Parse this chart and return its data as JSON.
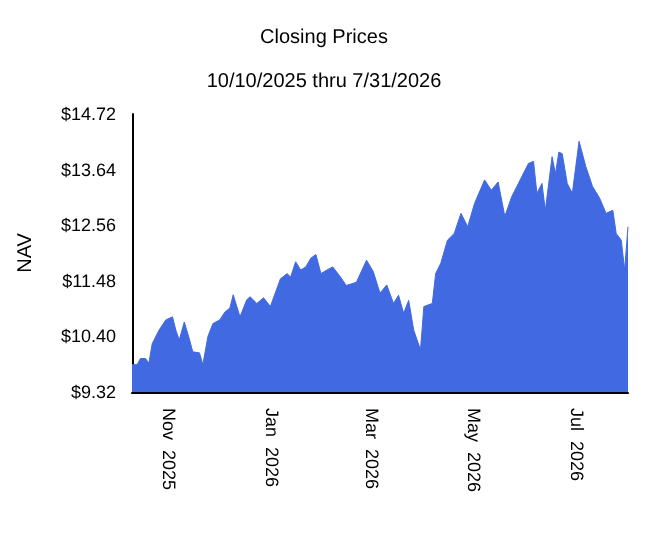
{
  "chart_data": {
    "type": "area",
    "title": "Closing Prices",
    "subtitle": "10/10/2025 thru 7/31/2026",
    "ylabel": "NAV",
    "x": [
      "2025-10-10",
      "2025-10-13",
      "2025-10-15",
      "2025-10-18",
      "2025-10-20",
      "2025-10-22",
      "2025-10-26",
      "2025-10-30",
      "2025-11-03",
      "2025-11-05",
      "2025-11-07",
      "2025-11-10",
      "2025-11-13",
      "2025-11-15",
      "2025-11-19",
      "2025-11-21",
      "2025-11-24",
      "2025-11-27",
      "2025-12-01",
      "2025-12-04",
      "2025-12-07",
      "2025-12-09",
      "2025-12-13",
      "2025-12-17",
      "2025-12-19",
      "2025-12-23",
      "2025-12-27",
      "2025-12-31",
      "2026-01-06",
      "2026-01-10",
      "2026-01-12",
      "2026-01-15",
      "2026-01-18",
      "2026-01-21",
      "2026-01-24",
      "2026-01-27",
      "2026-01-30",
      "2026-02-02",
      "2026-02-06",
      "2026-02-10",
      "2026-02-14",
      "2026-02-20",
      "2026-02-26",
      "2026-03-02",
      "2026-03-06",
      "2026-03-10",
      "2026-03-14",
      "2026-03-17",
      "2026-03-20",
      "2026-03-23",
      "2026-03-26",
      "2026-03-30",
      "2026-04-01",
      "2026-04-06",
      "2026-04-08",
      "2026-04-11",
      "2026-04-15",
      "2026-04-19",
      "2026-04-23",
      "2026-04-27",
      "2026-05-01",
      "2026-05-07",
      "2026-05-11",
      "2026-05-15",
      "2026-05-19",
      "2026-05-23",
      "2026-05-27",
      "2026-06-02",
      "2026-06-05",
      "2026-06-07",
      "2026-06-10",
      "2026-06-12",
      "2026-06-16",
      "2026-06-18",
      "2026-06-20",
      "2026-06-22",
      "2026-06-25",
      "2026-06-28",
      "2026-07-02",
      "2026-07-06",
      "2026-07-10",
      "2026-07-14",
      "2026-07-18",
      "2026-07-22",
      "2026-07-24",
      "2026-07-27",
      "2026-07-29",
      "2026-07-31"
    ],
    "series": [
      {
        "color": "#4169e1",
        "values": [
          9.85,
          9.85,
          9.97,
          9.97,
          9.88,
          10.26,
          10.52,
          10.72,
          10.78,
          10.52,
          10.33,
          10.68,
          10.35,
          10.1,
          10.08,
          9.85,
          10.4,
          10.65,
          10.72,
          10.87,
          10.95,
          11.21,
          10.78,
          11.11,
          11.17,
          11.04,
          11.15,
          10.98,
          11.52,
          11.62,
          11.55,
          11.85,
          11.69,
          11.75,
          11.92,
          11.99,
          11.62,
          11.68,
          11.75,
          11.58,
          11.39,
          11.45,
          11.88,
          11.66,
          11.24,
          11.4,
          11.04,
          11.2,
          10.85,
          11.1,
          10.52,
          10.14,
          10.98,
          11.04,
          11.62,
          11.82,
          12.27,
          12.4,
          12.79,
          12.53,
          12.98,
          13.44,
          13.24,
          13.4,
          12.73,
          13.11,
          13.37,
          13.76,
          13.8,
          13.18,
          13.37,
          12.85,
          13.89,
          13.56,
          13.98,
          13.95,
          13.37,
          13.18,
          14.19,
          13.7,
          13.31,
          13.1,
          12.79,
          12.85,
          12.4,
          12.27,
          11.69,
          12.53
        ]
      }
    ],
    "xlim": [
      "2025-10-10",
      "2026-07-31"
    ],
    "xticks": [
      {
        "value": "2025-11-01",
        "label": "Nov  2025"
      },
      {
        "value": "2026-01-01",
        "label": "Jan  2026"
      },
      {
        "value": "2026-03-01",
        "label": "Mar  2026"
      },
      {
        "value": "2026-05-01",
        "label": "May  2026"
      },
      {
        "value": "2026-07-01",
        "label": "Jul  2026"
      }
    ],
    "ylim": [
      9.32,
      14.72
    ],
    "yticks": [
      {
        "value": 9.32,
        "label": "$9.32"
      },
      {
        "value": 10.4,
        "label": "$10.40"
      },
      {
        "value": 11.48,
        "label": "$11.48"
      },
      {
        "value": 12.56,
        "label": "$12.56"
      },
      {
        "value": 13.64,
        "label": "$13.64"
      },
      {
        "value": 14.72,
        "label": "$14.72"
      }
    ],
    "grid": false,
    "marker": "none",
    "line_style": "solid"
  }
}
